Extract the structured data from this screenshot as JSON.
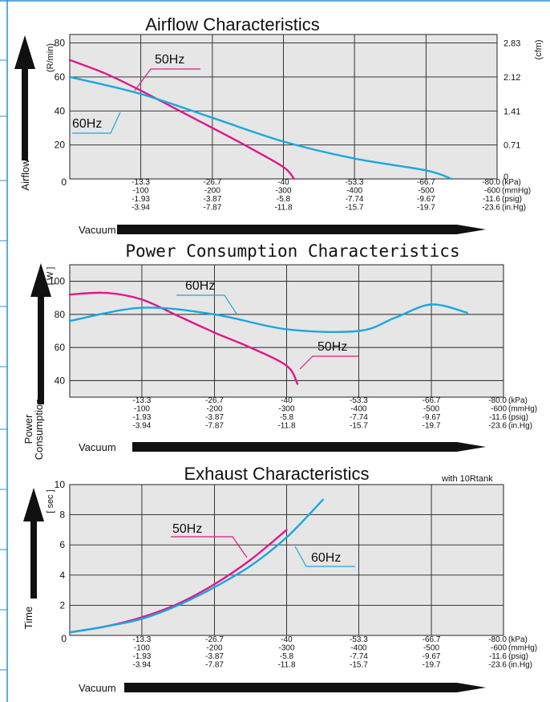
{
  "colors": {
    "hz50": "#e0188a",
    "hz60": "#1aa7df",
    "plot_bg": "#e6e6e6",
    "frame_blue": "#2a8fd0"
  },
  "xaxis_rows": [
    {
      "values": [
        "0",
        "-13.3",
        "-26.7",
        "-40",
        "-53.3",
        "-66.7",
        "-80.0"
      ],
      "unit": "(kPa)"
    },
    {
      "values": [
        "",
        "-100",
        "-200",
        "-300",
        "-400",
        "-500",
        "-600"
      ],
      "unit": "(mmHg)"
    },
    {
      "values": [
        "",
        "-1.93",
        "-3.87",
        "-5.8",
        "-7.74",
        "-9.67",
        "-11.6"
      ],
      "unit": "(psig)"
    },
    {
      "values": [
        "",
        "-3.94",
        "-7.87",
        "-11.8",
        "-15.7",
        "-19.7",
        "-23.6"
      ],
      "unit": "(in.Hg)"
    }
  ],
  "vacuum_label": "Vacuum",
  "chart_data": [
    {
      "type": "line",
      "title": "Airflow Characteristics",
      "ylabel": "Airflow",
      "y_unit": "(R/min)",
      "y2_unit": "(cfm)",
      "xlabel": "Vacuum",
      "xlim": [
        0,
        -80
      ],
      "ylim": [
        0,
        85
      ],
      "yticks": [
        "0",
        "20",
        "40",
        "60",
        "80"
      ],
      "y2ticks": [
        "0",
        "0.71",
        "1.41",
        "2.12",
        "2.83"
      ],
      "grid": true,
      "series": [
        {
          "name": "50Hz",
          "color": "#e0188a",
          "x": [
            0,
            -6.7,
            -13.3,
            -20,
            -26.7,
            -33.3,
            -40,
            -42
          ],
          "y": [
            70,
            62,
            52,
            41,
            30,
            19,
            7,
            0
          ]
        },
        {
          "name": "60Hz",
          "color": "#1aa7df",
          "x": [
            0,
            -13.3,
            -26.7,
            -40,
            -53.3,
            -66.7,
            -71.5
          ],
          "y": [
            60,
            50,
            36,
            22,
            12,
            5,
            0
          ]
        }
      ]
    },
    {
      "type": "line",
      "title": "Power Consumption Characteristics",
      "ylabel": "Power Consumption",
      "y_unit": "[ W ]",
      "xlabel": "Vacuum",
      "xlim": [
        0,
        -80
      ],
      "ylim": [
        30,
        110
      ],
      "yticks": [
        "40",
        "60",
        "80",
        "100"
      ],
      "grid": true,
      "series": [
        {
          "name": "50Hz",
          "color": "#e0188a",
          "x": [
            0,
            -6.7,
            -13.3,
            -20,
            -26.7,
            -33.3,
            -40,
            -42
          ],
          "y": [
            92,
            93,
            89,
            79,
            69,
            60,
            49,
            38
          ]
        },
        {
          "name": "60Hz",
          "color": "#1aa7df",
          "x": [
            0,
            -13.3,
            -26.7,
            -40,
            -53.3,
            -60,
            -66.7,
            -73.3
          ],
          "y": [
            76,
            84,
            80,
            71,
            70,
            78,
            86,
            81
          ]
        }
      ]
    },
    {
      "type": "line",
      "title": "Exhaust Characteristics",
      "subtitle": "with 10Rtank",
      "ylabel": "Time",
      "y_unit": "[ sec ]",
      "xlabel": "Vacuum",
      "xlim": [
        0,
        -80
      ],
      "ylim": [
        0,
        10
      ],
      "yticks": [
        "0",
        "2",
        "4",
        "6",
        "8",
        "10"
      ],
      "grid": true,
      "series": [
        {
          "name": "50Hz",
          "color": "#e0188a",
          "x": [
            0,
            -6.7,
            -13.3,
            -20,
            -26.7,
            -33.3,
            -40
          ],
          "y": [
            0.2,
            0.6,
            1.2,
            2.1,
            3.4,
            5.0,
            7.0
          ]
        },
        {
          "name": "60Hz",
          "color": "#1aa7df",
          "x": [
            0,
            -6.7,
            -13.3,
            -20,
            -26.7,
            -33.3,
            -40,
            -46.7
          ],
          "y": [
            0.2,
            0.6,
            1.1,
            2.0,
            3.2,
            4.6,
            6.5,
            9.0
          ]
        }
      ]
    }
  ]
}
